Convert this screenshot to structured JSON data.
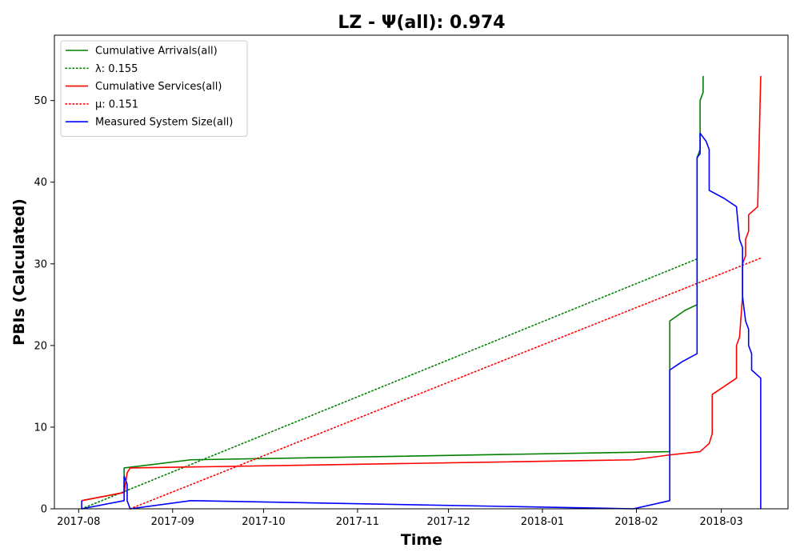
{
  "chart_data": {
    "type": "line",
    "title": "LZ -  Ψ(all): 0.974",
    "xlabel": "Time",
    "ylabel": "PBIs (Calculated)",
    "x_axis_type": "date",
    "xlim": [
      "2017-07-24",
      "2018-03-23"
    ],
    "ylim": [
      0,
      58
    ],
    "x_ticks": [
      "2017-08-01",
      "2017-09-01",
      "2017-10-01",
      "2017-11-01",
      "2017-12-01",
      "2018-01-01",
      "2018-02-01",
      "2018-03-01"
    ],
    "x_tick_labels": [
      "2017-08",
      "2017-09",
      "2017-10",
      "2017-11",
      "2017-12",
      "2018-01",
      "2018-02",
      "2018-03"
    ],
    "y_ticks": [
      0,
      10,
      20,
      30,
      40,
      50
    ],
    "y_tick_labels": [
      "0",
      "10",
      "20",
      "30",
      "40",
      "50"
    ],
    "grid": false,
    "legend_position": "top-left",
    "series": [
      {
        "name": "Cumulative Arrivals(all)",
        "color": "#008000",
        "style": "solid",
        "points": [
          [
            "2017-08-02",
            1
          ],
          [
            "2017-08-16",
            2
          ],
          [
            "2017-08-16",
            5
          ],
          [
            "2017-09-07",
            6
          ],
          [
            "2018-02-12",
            7
          ],
          [
            "2018-02-12",
            23
          ],
          [
            "2018-02-17",
            24.3
          ],
          [
            "2018-02-21",
            25
          ],
          [
            "2018-02-21",
            43
          ],
          [
            "2018-02-22",
            44
          ],
          [
            "2018-02-22",
            50
          ],
          [
            "2018-02-23",
            51
          ],
          [
            "2018-02-23",
            53
          ]
        ]
      },
      {
        "name": "λ: 0.155",
        "color": "#008000",
        "style": "dotted",
        "points": [
          [
            "2017-08-02",
            0
          ],
          [
            "2018-02-21",
            30.6
          ]
        ]
      },
      {
        "name": "Cumulative Services(all)",
        "color": "#ff0000",
        "style": "solid",
        "points": [
          [
            "2017-08-02",
            1
          ],
          [
            "2017-08-16",
            2
          ],
          [
            "2017-08-17",
            4.4
          ],
          [
            "2017-08-18",
            5
          ],
          [
            "2018-01-31",
            6
          ],
          [
            "2018-02-12",
            6.6
          ],
          [
            "2018-02-22",
            7
          ],
          [
            "2018-02-25",
            8
          ],
          [
            "2018-02-26",
            9.2
          ],
          [
            "2018-02-26",
            14
          ],
          [
            "2018-03-02",
            15
          ],
          [
            "2018-03-06",
            16
          ],
          [
            "2018-03-06",
            20
          ],
          [
            "2018-03-07",
            21
          ],
          [
            "2018-03-08",
            26
          ],
          [
            "2018-03-08",
            27
          ],
          [
            "2018-03-08",
            30
          ],
          [
            "2018-03-09",
            31
          ],
          [
            "2018-03-09",
            33
          ],
          [
            "2018-03-10",
            34
          ],
          [
            "2018-03-10",
            36
          ],
          [
            "2018-03-13",
            37
          ],
          [
            "2018-03-14",
            53
          ]
        ]
      },
      {
        "name": "μ: 0.151",
        "color": "#ff0000",
        "style": "dotted",
        "points": [
          [
            "2017-08-18",
            0
          ],
          [
            "2018-03-14",
            30.7
          ]
        ]
      },
      {
        "name": "Measured System Size(all)",
        "color": "#0000ff",
        "style": "solid",
        "points": [
          [
            "2017-08-02",
            1
          ],
          [
            "2017-08-02",
            0
          ],
          [
            "2017-08-16",
            1
          ],
          [
            "2017-08-16",
            4
          ],
          [
            "2017-08-17",
            3
          ],
          [
            "2017-08-17",
            1
          ],
          [
            "2017-08-18",
            0
          ],
          [
            "2017-09-07",
            1
          ],
          [
            "2018-01-31",
            0
          ],
          [
            "2018-02-12",
            1
          ],
          [
            "2018-02-12",
            17
          ],
          [
            "2018-02-16",
            18
          ],
          [
            "2018-02-21",
            19
          ],
          [
            "2018-02-21",
            34
          ],
          [
            "2018-02-21",
            43
          ],
          [
            "2018-02-22",
            43.5
          ],
          [
            "2018-02-22",
            46
          ],
          [
            "2018-02-24",
            45
          ],
          [
            "2018-02-25",
            44
          ],
          [
            "2018-02-25",
            39
          ],
          [
            "2018-03-02",
            38
          ],
          [
            "2018-03-06",
            37
          ],
          [
            "2018-03-07",
            33
          ],
          [
            "2018-03-08",
            32
          ],
          [
            "2018-03-08",
            26
          ],
          [
            "2018-03-09",
            23
          ],
          [
            "2018-03-10",
            22
          ],
          [
            "2018-03-10",
            20
          ],
          [
            "2018-03-11",
            19
          ],
          [
            "2018-03-11",
            17
          ],
          [
            "2018-03-14",
            16
          ],
          [
            "2018-03-14",
            0
          ]
        ]
      }
    ],
    "legend_entries": [
      {
        "label": "Cumulative Arrivals(all)",
        "color": "#008000",
        "style": "solid"
      },
      {
        "label": "λ: 0.155",
        "color": "#008000",
        "style": "dotted"
      },
      {
        "label": "Cumulative Services(all)",
        "color": "#ff0000",
        "style": "solid"
      },
      {
        "label": "μ: 0.151",
        "color": "#ff0000",
        "style": "dotted"
      },
      {
        "label": "Measured System Size(all)",
        "color": "#0000ff",
        "style": "solid"
      }
    ]
  }
}
